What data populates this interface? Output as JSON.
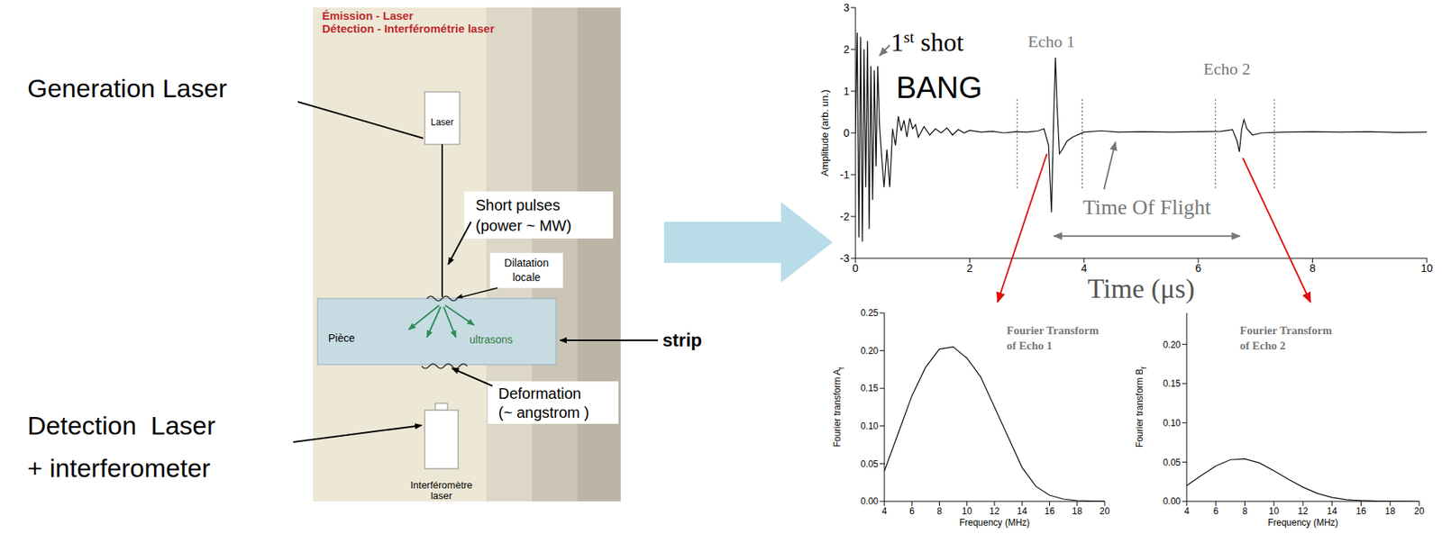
{
  "diagram": {
    "generation_label": "Generation Laser",
    "detection_label": [
      "Detection  Laser",
      "+ interferometer"
    ],
    "strip_label": "strip",
    "inset": {
      "title": [
        "Émission - Laser",
        "Détection - Interférométrie laser"
      ],
      "laser": "Laser",
      "pulses": [
        "Short pulses",
        "(power ~ MW)"
      ],
      "dilatation": [
        "Dilatation",
        "locale"
      ],
      "piece": "Pièce",
      "ultrasons": "ultrasons",
      "deformation": [
        "Deformation",
        "(~ angstrom )"
      ],
      "interferometer": [
        "Interféromètre",
        "laser"
      ]
    }
  },
  "chart_data": [
    {
      "type": "line",
      "x_label": "Time (μs)",
      "y_label": "Amplitude (arb. un.)",
      "color": "#000000",
      "x": [
        0,
        0.03,
        0.06,
        0.09,
        0.12,
        0.15,
        0.18,
        0.21,
        0.24,
        0.27,
        0.3,
        0.33,
        0.36,
        0.39,
        0.42,
        0.46,
        0.5,
        0.55,
        0.6,
        0.65,
        0.7,
        0.75,
        0.8,
        0.85,
        0.9,
        0.95,
        1.0,
        1.05,
        1.1,
        1.2,
        1.3,
        1.4,
        1.5,
        1.6,
        1.7,
        1.8,
        1.9,
        2.0,
        2.2,
        2.4,
        2.6,
        2.8,
        3.0,
        3.2,
        3.3,
        3.38,
        3.43,
        3.47,
        3.5,
        3.53,
        3.57,
        3.62,
        3.7,
        3.8,
        4.0,
        4.3,
        4.6,
        5.0,
        5.5,
        6.0,
        6.4,
        6.6,
        6.68,
        6.72,
        6.76,
        6.8,
        6.85,
        6.95,
        7.1,
        7.5,
        8.0,
        8.5,
        9.0,
        9.5,
        10.0
      ],
      "values": [
        0,
        2.4,
        -2.5,
        2.3,
        -2.6,
        2.0,
        -1.3,
        2.2,
        -2.3,
        1.6,
        -1.6,
        1.5,
        -0.8,
        1.6,
        0.2,
        -0.6,
        -1.3,
        -0.4,
        -1.3,
        0.1,
        -0.3,
        0.4,
        0.05,
        0.3,
        -0.1,
        0.35,
        0.1,
        0.2,
        -0.1,
        0.15,
        -0.05,
        0.1,
        0,
        0.12,
        -0.05,
        0.08,
        0,
        0.06,
        0.02,
        0.04,
        0,
        0.03,
        0.02,
        0.05,
        0.1,
        -0.3,
        -1.9,
        0.4,
        1.8,
        0.6,
        -0.5,
        -0.4,
        -0.2,
        -0.1,
        0.02,
        0.05,
        0.02,
        0.03,
        0.02,
        0.03,
        0.04,
        0.08,
        -0.2,
        -0.45,
        0.1,
        0.32,
        0.1,
        -0.05,
        0,
        0.02,
        0.03,
        0.02,
        0.03,
        0.01,
        0.02
      ],
      "xlim": [
        0,
        10
      ],
      "xticks": [
        0,
        2,
        4,
        6,
        8,
        10
      ],
      "ylim": [
        -3,
        3
      ],
      "yticks": [
        -3,
        -2,
        -1,
        0,
        1,
        2,
        3
      ],
      "gates": [
        [
          2.83,
          3.97
        ],
        [
          6.3,
          7.33
        ]
      ],
      "annotations": {
        "first_shot": "1st shot",
        "bang": "BANG",
        "echo1": "Echo 1",
        "echo2": "Echo 2",
        "time_of_flight": "Time Of Flight"
      }
    },
    {
      "type": "line",
      "title": [
        "Fourier Transform",
        "of Echo 1"
      ],
      "x_label": "Frequency (MHz)",
      "y_label": {
        "text": "Fourier transform A",
        "subscript": "f"
      },
      "color": "#000000",
      "x": [
        4,
        5,
        6,
        7,
        8,
        9,
        10,
        11,
        12,
        13,
        14,
        15,
        16,
        17,
        18,
        19,
        20
      ],
      "values": [
        0.04,
        0.09,
        0.14,
        0.178,
        0.202,
        0.205,
        0.19,
        0.165,
        0.125,
        0.085,
        0.045,
        0.02,
        0.008,
        0.003,
        0.001,
        0.0005,
        0.0002
      ],
      "xlim": [
        4,
        20
      ],
      "xticks": [
        4,
        6,
        8,
        10,
        12,
        14,
        16,
        18,
        20
      ],
      "ylim": [
        0,
        0.25
      ],
      "yticks": [
        {
          "value": 0,
          "label": "0.00"
        },
        {
          "value": 0.05,
          "label": "0.05"
        },
        {
          "value": 0.1,
          "label": "0.10"
        },
        {
          "value": 0.15,
          "label": "0.15"
        },
        {
          "value": 0.2,
          "label": "0.20"
        },
        {
          "value": 0.25,
          "label": "0.25"
        }
      ]
    },
    {
      "type": "line",
      "title": [
        "Fourier Transform",
        "of Echo 2"
      ],
      "x_label": "Frequency (MHz)",
      "y_label": {
        "text": "Fourier transform B",
        "subscript": "f"
      },
      "color": "#000000",
      "x": [
        4,
        5,
        6,
        7,
        8,
        9,
        10,
        11,
        12,
        13,
        14,
        15,
        16,
        17,
        18,
        19,
        20
      ],
      "values": [
        0.02,
        0.033,
        0.045,
        0.053,
        0.054,
        0.049,
        0.039,
        0.028,
        0.018,
        0.01,
        0.005,
        0.002,
        0.001,
        0.0005,
        0.0002,
        0.0001,
        0
      ],
      "xlim": [
        4,
        20
      ],
      "xticks": [
        4,
        6,
        8,
        10,
        12,
        14,
        16,
        18,
        20
      ],
      "ylim": [
        0,
        0.24
      ],
      "yticks": [
        {
          "value": 0,
          "label": "0.00"
        },
        {
          "value": 0.05,
          "label": "0.05"
        },
        {
          "value": 0.1,
          "label": "0.10"
        },
        {
          "value": 0.15,
          "label": "0.15"
        },
        {
          "value": 0.2,
          "label": "0.20"
        }
      ]
    }
  ]
}
